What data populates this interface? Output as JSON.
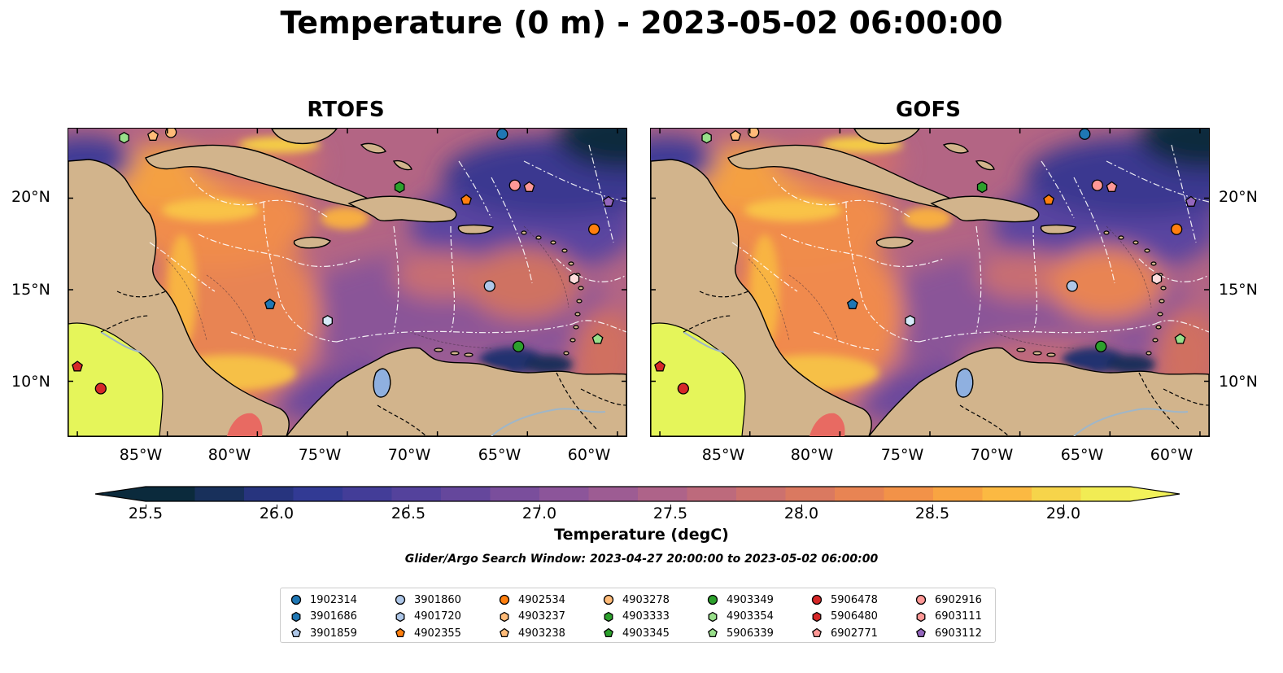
{
  "title": "Temperature (0 m) - 2023-05-02 06:00:00",
  "panels": [
    {
      "title": "RTOFS"
    },
    {
      "title": "GOFS"
    }
  ],
  "lat_labels": [
    "20°N",
    "15°N",
    "10°N"
  ],
  "lon_labels": [
    "85°W",
    "80°W",
    "75°W",
    "70°W",
    "65°W",
    "60°W"
  ],
  "colorbar": {
    "label": "Temperature (degC)",
    "ticks": [
      "25.5",
      "26.0",
      "26.5",
      "27.0",
      "27.5",
      "28.0",
      "28.5",
      "29.0"
    ],
    "min": 25.25,
    "max": 29.25,
    "extend": "both",
    "colors": [
      "#0b2a3c",
      "#18305b",
      "#27347e",
      "#323a94",
      "#433d98",
      "#54429c",
      "#65479c",
      "#7a4e9c",
      "#8c559a",
      "#9d5c93",
      "#ae6389",
      "#bd6a7c",
      "#cc716e",
      "#da7960",
      "#e88453",
      "#f29248",
      "#f8a442",
      "#fbb942",
      "#f6d44a",
      "#f1ec54"
    ]
  },
  "search_window": "Glider/Argo Search Window: 2023-04-27 20:00:00 to 2023-05-02 06:00:00",
  "legend": [
    {
      "label": "1902314",
      "color": "#1f77b4",
      "marker": "circle"
    },
    {
      "label": "3901686",
      "color": "#1f77b4",
      "marker": "hexagon"
    },
    {
      "label": "3901859",
      "color": "#aec7e8",
      "marker": "pentagon"
    },
    {
      "label": "3901860",
      "color": "#aec7e8",
      "marker": "circle"
    },
    {
      "label": "4901720",
      "color": "#aec7e8",
      "marker": "hexagon"
    },
    {
      "label": "4902355",
      "color": "#ff7f0e",
      "marker": "pentagon"
    },
    {
      "label": "4902534",
      "color": "#ff7f0e",
      "marker": "circle"
    },
    {
      "label": "4903237",
      "color": "#ffbb78",
      "marker": "hexagon"
    },
    {
      "label": "4903238",
      "color": "#ffbb78",
      "marker": "pentagon"
    },
    {
      "label": "4903278",
      "color": "#ffbb78",
      "marker": "circle"
    },
    {
      "label": "4903333",
      "color": "#2ca02c",
      "marker": "hexagon"
    },
    {
      "label": "4903345",
      "color": "#2ca02c",
      "marker": "pentagon"
    },
    {
      "label": "4903349",
      "color": "#2ca02c",
      "marker": "circle"
    },
    {
      "label": "4903354",
      "color": "#98df8a",
      "marker": "hexagon"
    },
    {
      "label": "5906339",
      "color": "#98df8a",
      "marker": "pentagon"
    },
    {
      "label": "5906478",
      "color": "#d62728",
      "marker": "circle"
    },
    {
      "label": "5906480",
      "color": "#d62728",
      "marker": "hexagon"
    },
    {
      "label": "6902771",
      "color": "#ff9896",
      "marker": "pentagon"
    },
    {
      "label": "6902916",
      "color": "#ff9896",
      "marker": "circle"
    },
    {
      "label": "6903111",
      "color": "#ff9896",
      "marker": "hexagon"
    },
    {
      "label": "6903112",
      "color": "#9467bd",
      "marker": "pentagon"
    }
  ],
  "floats": [
    {
      "lon": -87.4,
      "lat": 23.3,
      "marker": "hexagon",
      "color": "#98df8a"
    },
    {
      "lon": -85.8,
      "lat": 23.4,
      "marker": "pentagon",
      "color": "#ffbb78"
    },
    {
      "lon": -84.8,
      "lat": 23.6,
      "marker": "circle",
      "color": "#ffbb78"
    },
    {
      "lon": -66.4,
      "lat": 23.5,
      "marker": "circle",
      "color": "#1f77b4"
    },
    {
      "lon": -72.1,
      "lat": 20.6,
      "marker": "hexagon",
      "color": "#2ca02c"
    },
    {
      "lon": -68.4,
      "lat": 19.9,
      "marker": "pentagon",
      "color": "#ff7f0e"
    },
    {
      "lon": -65.7,
      "lat": 20.7,
      "marker": "circle",
      "color": "#ff9896"
    },
    {
      "lon": -64.9,
      "lat": 20.6,
      "marker": "pentagon",
      "color": "#ff9896"
    },
    {
      "lon": -60.5,
      "lat": 19.8,
      "marker": "pentagon",
      "color": "#9467bd"
    },
    {
      "lon": -61.3,
      "lat": 18.3,
      "marker": "circle",
      "color": "#ff7f0e"
    },
    {
      "lon": -67.1,
      "lat": 15.2,
      "marker": "circle",
      "color": "#aec7e8"
    },
    {
      "lon": -62.4,
      "lat": 15.6,
      "marker": "hexagon",
      "color": "#ffdddd"
    },
    {
      "lon": -79.3,
      "lat": 14.2,
      "marker": "pentagon",
      "color": "#1f77b4"
    },
    {
      "lon": -76.1,
      "lat": 13.3,
      "marker": "hexagon",
      "color": "#d6eaf8"
    },
    {
      "lon": -65.5,
      "lat": 11.9,
      "marker": "circle",
      "color": "#2ca02c"
    },
    {
      "lon": -61.1,
      "lat": 12.3,
      "marker": "pentagon",
      "color": "#98df8a"
    },
    {
      "lon": -90.0,
      "lat": 10.8,
      "marker": "pentagon",
      "color": "#d62728"
    },
    {
      "lon": -88.7,
      "lat": 9.6,
      "marker": "circle",
      "color": "#d62728"
    }
  ]
}
